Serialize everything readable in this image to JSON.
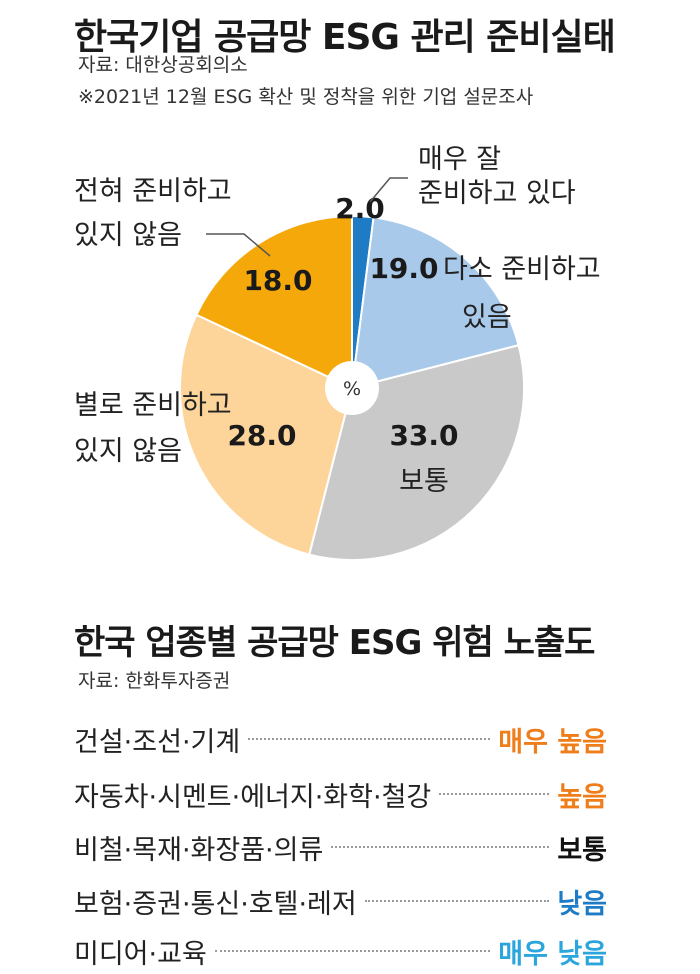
{
  "header": {
    "title": "한국기업 공급망 ESG 관리 준비실태",
    "source": "자료: 대한상공회의소",
    "note": "※2021년 12월 ESG 확산 및 정착을 위한 기업 설문조사"
  },
  "chart_data": {
    "type": "pie",
    "unit": "%",
    "slices": [
      {
        "label_lines": [
          "매우 잘",
          "준비하고 있다"
        ],
        "value": 2.0,
        "value_text": "2.0",
        "color": "#1f7cc4"
      },
      {
        "label_lines": [
          "다소 준비하고",
          "있음"
        ],
        "value": 19.0,
        "value_text": "19.0",
        "color": "#a9c9ea"
      },
      {
        "label_lines": [
          "보통"
        ],
        "value": 33.0,
        "value_text": "33.0",
        "color": "#c9c9c9"
      },
      {
        "label_lines": [
          "별로 준비하고",
          "있지 않음"
        ],
        "value": 28.0,
        "value_text": "28.0",
        "color": "#fdd59a"
      },
      {
        "label_lines": [
          "전혀 준비하고",
          "있지 않음"
        ],
        "value": 18.0,
        "value_text": "18.0",
        "color": "#f5a80a"
      }
    ]
  },
  "ranking": {
    "title": "한국 업종별 공급망 ESG 위험 노출도",
    "source": "자료: 한화투자증권",
    "rows": [
      {
        "sector": "건설·조선·기계",
        "level": "매우 높음",
        "color": "#ef7d1a"
      },
      {
        "sector": "자동차·시멘트·에너지·화학·철강",
        "level": "높음",
        "color": "#ef7d1a"
      },
      {
        "sector": "비철·목재·화장품·의류",
        "level": "보통",
        "color": "#111111"
      },
      {
        "sector": "보험·증권·통신·호텔·레저",
        "level": "낮음",
        "color": "#1f7cc4"
      },
      {
        "sector": "미디어·교육",
        "level": "매우 낮음",
        "color": "#2aa6dc"
      }
    ]
  }
}
